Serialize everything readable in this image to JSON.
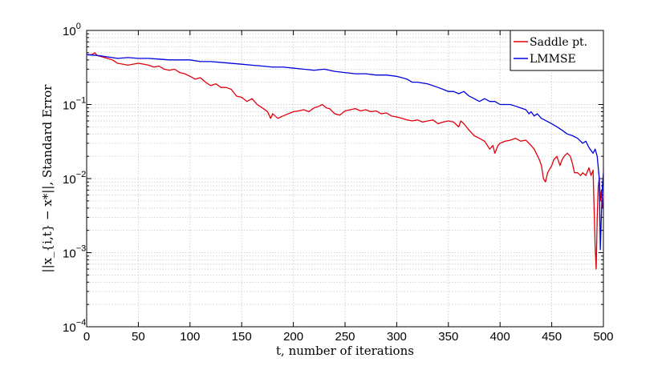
{
  "chart_data": {
    "type": "line",
    "title": "",
    "xlabel": "t, number of iterations",
    "ylabel": "||x_{i,t} − x*||, Standard Error",
    "xlim": [
      0,
      500
    ],
    "ylim": [
      0.0001,
      1
    ],
    "yscale": "log",
    "grid": true,
    "legend_position": "top-right",
    "x_ticks": [
      0,
      50,
      100,
      150,
      200,
      250,
      300,
      350,
      400,
      450,
      500
    ],
    "y_ticks": [
      0.0001,
      0.001,
      0.01,
      0.1,
      1
    ],
    "y_tick_labels": [
      {
        "base": "10",
        "exp": "−4"
      },
      {
        "base": "10",
        "exp": "−3"
      },
      {
        "base": "10",
        "exp": "−2"
      },
      {
        "base": "10",
        "exp": "−1"
      },
      {
        "base": "10",
        "exp": "0"
      }
    ],
    "series": [
      {
        "name": "Saddle pt.",
        "color": "#e0000b",
        "points": [
          [
            0,
            0.47
          ],
          [
            5,
            0.47
          ],
          [
            8,
            0.5
          ],
          [
            10,
            0.46
          ],
          [
            15,
            0.44
          ],
          [
            20,
            0.42
          ],
          [
            25,
            0.4
          ],
          [
            30,
            0.36
          ],
          [
            35,
            0.35
          ],
          [
            40,
            0.34
          ],
          [
            45,
            0.35
          ],
          [
            50,
            0.36
          ],
          [
            55,
            0.35
          ],
          [
            60,
            0.34
          ],
          [
            65,
            0.32
          ],
          [
            70,
            0.33
          ],
          [
            75,
            0.3
          ],
          [
            80,
            0.29
          ],
          [
            85,
            0.3
          ],
          [
            90,
            0.27
          ],
          [
            95,
            0.26
          ],
          [
            100,
            0.24
          ],
          [
            105,
            0.22
          ],
          [
            110,
            0.23
          ],
          [
            115,
            0.2
          ],
          [
            120,
            0.18
          ],
          [
            125,
            0.19
          ],
          [
            130,
            0.17
          ],
          [
            135,
            0.17
          ],
          [
            140,
            0.16
          ],
          [
            145,
            0.13
          ],
          [
            150,
            0.125
          ],
          [
            155,
            0.11
          ],
          [
            160,
            0.12
          ],
          [
            165,
            0.1
          ],
          [
            170,
            0.09
          ],
          [
            175,
            0.08
          ],
          [
            178,
            0.065
          ],
          [
            180,
            0.075
          ],
          [
            185,
            0.065
          ],
          [
            190,
            0.07
          ],
          [
            195,
            0.075
          ],
          [
            200,
            0.08
          ],
          [
            205,
            0.082
          ],
          [
            210,
            0.085
          ],
          [
            215,
            0.08
          ],
          [
            220,
            0.09
          ],
          [
            225,
            0.095
          ],
          [
            228,
            0.1
          ],
          [
            232,
            0.09
          ],
          [
            235,
            0.088
          ],
          [
            240,
            0.075
          ],
          [
            245,
            0.072
          ],
          [
            250,
            0.082
          ],
          [
            255,
            0.085
          ],
          [
            260,
            0.088
          ],
          [
            265,
            0.082
          ],
          [
            270,
            0.085
          ],
          [
            275,
            0.08
          ],
          [
            280,
            0.082
          ],
          [
            285,
            0.075
          ],
          [
            290,
            0.077
          ],
          [
            295,
            0.07
          ],
          [
            300,
            0.068
          ],
          [
            305,
            0.065
          ],
          [
            310,
            0.062
          ],
          [
            315,
            0.06
          ],
          [
            320,
            0.062
          ],
          [
            325,
            0.058
          ],
          [
            330,
            0.06
          ],
          [
            335,
            0.062
          ],
          [
            340,
            0.055
          ],
          [
            345,
            0.058
          ],
          [
            350,
            0.06
          ],
          [
            355,
            0.058
          ],
          [
            360,
            0.05
          ],
          [
            362,
            0.06
          ],
          [
            365,
            0.055
          ],
          [
            370,
            0.045
          ],
          [
            375,
            0.038
          ],
          [
            380,
            0.035
          ],
          [
            385,
            0.032
          ],
          [
            390,
            0.025
          ],
          [
            393,
            0.028
          ],
          [
            395,
            0.022
          ],
          [
            398,
            0.028
          ],
          [
            400,
            0.03
          ],
          [
            405,
            0.032
          ],
          [
            410,
            0.033
          ],
          [
            415,
            0.035
          ],
          [
            420,
            0.032
          ],
          [
            425,
            0.033
          ],
          [
            428,
            0.03
          ],
          [
            430,
            0.028
          ],
          [
            433,
            0.025
          ],
          [
            435,
            0.022
          ],
          [
            438,
            0.018
          ],
          [
            440,
            0.015
          ],
          [
            442,
            0.01
          ],
          [
            444,
            0.009
          ],
          [
            446,
            0.012
          ],
          [
            450,
            0.015
          ],
          [
            452,
            0.018
          ],
          [
            455,
            0.02
          ],
          [
            458,
            0.015
          ],
          [
            460,
            0.018
          ],
          [
            462,
            0.02
          ],
          [
            465,
            0.022
          ],
          [
            468,
            0.02
          ],
          [
            470,
            0.016
          ],
          [
            472,
            0.012
          ],
          [
            475,
            0.012
          ],
          [
            478,
            0.011
          ],
          [
            480,
            0.012
          ],
          [
            483,
            0.011
          ],
          [
            486,
            0.014
          ],
          [
            488,
            0.011
          ],
          [
            490,
            0.013
          ],
          [
            492,
            0.0012
          ],
          [
            493,
            0.0006
          ],
          [
            494,
            0.003
          ],
          [
            495,
            0.008
          ],
          [
            496,
            0.01
          ],
          [
            497,
            0.005
          ],
          [
            498,
            0.007
          ],
          [
            499,
            0.004
          ],
          [
            500,
            0.006
          ]
        ]
      },
      {
        "name": "LMMSE",
        "color": "#0000dd",
        "points": [
          [
            0,
            0.47
          ],
          [
            10,
            0.46
          ],
          [
            20,
            0.44
          ],
          [
            30,
            0.42
          ],
          [
            40,
            0.43
          ],
          [
            50,
            0.42
          ],
          [
            60,
            0.42
          ],
          [
            70,
            0.41
          ],
          [
            80,
            0.4
          ],
          [
            90,
            0.4
          ],
          [
            100,
            0.4
          ],
          [
            110,
            0.38
          ],
          [
            120,
            0.38
          ],
          [
            130,
            0.37
          ],
          [
            140,
            0.36
          ],
          [
            150,
            0.35
          ],
          [
            160,
            0.34
          ],
          [
            170,
            0.33
          ],
          [
            180,
            0.32
          ],
          [
            190,
            0.32
          ],
          [
            200,
            0.31
          ],
          [
            210,
            0.3
          ],
          [
            220,
            0.29
          ],
          [
            230,
            0.3
          ],
          [
            240,
            0.28
          ],
          [
            250,
            0.27
          ],
          [
            260,
            0.26
          ],
          [
            270,
            0.26
          ],
          [
            280,
            0.25
          ],
          [
            290,
            0.25
          ],
          [
            300,
            0.24
          ],
          [
            305,
            0.23
          ],
          [
            310,
            0.22
          ],
          [
            315,
            0.2
          ],
          [
            320,
            0.2
          ],
          [
            330,
            0.19
          ],
          [
            340,
            0.17
          ],
          [
            345,
            0.16
          ],
          [
            350,
            0.15
          ],
          [
            355,
            0.15
          ],
          [
            360,
            0.14
          ],
          [
            365,
            0.15
          ],
          [
            370,
            0.13
          ],
          [
            375,
            0.12
          ],
          [
            380,
            0.11
          ],
          [
            385,
            0.12
          ],
          [
            390,
            0.11
          ],
          [
            395,
            0.11
          ],
          [
            400,
            0.1
          ],
          [
            405,
            0.1
          ],
          [
            410,
            0.1
          ],
          [
            415,
            0.095
          ],
          [
            420,
            0.09
          ],
          [
            425,
            0.085
          ],
          [
            428,
            0.075
          ],
          [
            430,
            0.08
          ],
          [
            433,
            0.07
          ],
          [
            436,
            0.075
          ],
          [
            440,
            0.065
          ],
          [
            445,
            0.06
          ],
          [
            450,
            0.055
          ],
          [
            455,
            0.05
          ],
          [
            460,
            0.045
          ],
          [
            465,
            0.04
          ],
          [
            470,
            0.038
          ],
          [
            475,
            0.035
          ],
          [
            480,
            0.03
          ],
          [
            483,
            0.032
          ],
          [
            485,
            0.028
          ],
          [
            487,
            0.025
          ],
          [
            490,
            0.022
          ],
          [
            492,
            0.025
          ],
          [
            494,
            0.02
          ],
          [
            496,
            0.01
          ],
          [
            497,
            0.0011
          ],
          [
            498,
            0.003
          ],
          [
            499,
            0.008
          ],
          [
            500,
            0.012
          ]
        ]
      }
    ]
  }
}
